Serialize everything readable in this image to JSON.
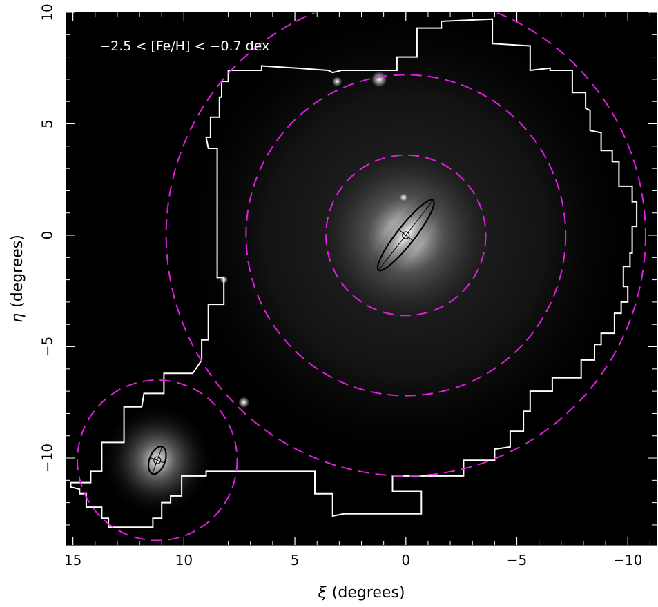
{
  "chart_data": {
    "type": "scatter",
    "title": "",
    "annotation": "−2.5 < [Fe/H] < −0.7 dex",
    "xlabel_symbol": "ξ",
    "xlabel_unit": "(degrees)",
    "ylabel_symbol": "η",
    "ylabel_unit": "(degrees)",
    "xlim": [
      15.3,
      -11.3
    ],
    "ylim": [
      -13.9,
      10.0
    ],
    "x_reversed": true,
    "grid": false,
    "background": "#000000",
    "x_ticks": [
      15,
      10,
      5,
      0,
      -5,
      -10
    ],
    "x_tick_labels": [
      "15",
      "10",
      "5",
      "0",
      "−5",
      "−10"
    ],
    "y_ticks": [
      10,
      5,
      0,
      -5,
      -10
    ],
    "y_tick_labels": [
      "10",
      "5",
      "0",
      "−5",
      "−10"
    ],
    "circles": [
      {
        "name": "M31 inner",
        "cx": 0,
        "cy": 0,
        "r": 3.6,
        "color": "#e020e0"
      },
      {
        "name": "M31 middle",
        "cx": 0,
        "cy": 0,
        "r": 7.2,
        "color": "#e020e0"
      },
      {
        "name": "M31 outer",
        "cx": 0,
        "cy": 0,
        "r": 10.8,
        "color": "#e020e0"
      },
      {
        "name": "M33",
        "cx": 11.2,
        "cy": -10.1,
        "r": 3.6,
        "color": "#e020e0"
      }
    ],
    "ellipses": [
      {
        "name": "M31 disk",
        "cx": 0,
        "cy": 0,
        "semi_major_deg": 2.0,
        "semi_minor_deg": 0.4,
        "pa_deg": 38,
        "color": "#000000"
      },
      {
        "name": "M33 disk",
        "cx": 11.2,
        "cy": -10.1,
        "semi_major_deg": 0.65,
        "semi_minor_deg": 0.35,
        "pa_deg": 20,
        "color": "#000000"
      }
    ],
    "footprint_color": "#ffffff",
    "footprint": [
      [
        8.0,
        7.4
      ],
      [
        6.5,
        7.4
      ],
      [
        6.5,
        7.6
      ],
      [
        4.9,
        7.5
      ],
      [
        3.5,
        7.4
      ],
      [
        3.3,
        7.3
      ],
      [
        2.9,
        7.4
      ],
      [
        0.4,
        7.4
      ],
      [
        0.4,
        8.0
      ],
      [
        -0.5,
        8.0
      ],
      [
        -0.5,
        9.3
      ],
      [
        -1.6,
        9.3
      ],
      [
        -1.6,
        9.6
      ],
      [
        -3.9,
        9.7
      ],
      [
        -3.9,
        8.6
      ],
      [
        -5.6,
        8.5
      ],
      [
        -5.6,
        7.4
      ],
      [
        -6.5,
        7.5
      ],
      [
        -6.5,
        7.4
      ],
      [
        -7.5,
        7.4
      ],
      [
        -7.5,
        6.4
      ],
      [
        -8.1,
        6.4
      ],
      [
        -8.1,
        5.7
      ],
      [
        -8.3,
        5.6
      ],
      [
        -8.3,
        4.7
      ],
      [
        -8.8,
        4.6
      ],
      [
        -8.8,
        3.8
      ],
      [
        -9.3,
        3.8
      ],
      [
        -9.3,
        3.3
      ],
      [
        -9.6,
        3.3
      ],
      [
        -9.6,
        2.2
      ],
      [
        -10.2,
        2.2
      ],
      [
        -10.2,
        1.5
      ],
      [
        -10.4,
        1.5
      ],
      [
        -10.4,
        0.4
      ],
      [
        -10.2,
        0.4
      ],
      [
        -10.2,
        -0.8
      ],
      [
        -10.1,
        -0.8
      ],
      [
        -10.1,
        -1.4
      ],
      [
        -9.8,
        -1.4
      ],
      [
        -9.8,
        -2.3
      ],
      [
        -10.0,
        -2.3
      ],
      [
        -10.0,
        -3.0
      ],
      [
        -9.7,
        -3.0
      ],
      [
        -9.7,
        -3.5
      ],
      [
        -9.4,
        -3.5
      ],
      [
        -9.4,
        -4.4
      ],
      [
        -8.8,
        -4.4
      ],
      [
        -8.8,
        -4.9
      ],
      [
        -8.5,
        -4.9
      ],
      [
        -8.5,
        -5.6
      ],
      [
        -7.9,
        -5.6
      ],
      [
        -7.9,
        -6.4
      ],
      [
        -6.6,
        -6.4
      ],
      [
        -6.6,
        -7.0
      ],
      [
        -5.6,
        -7.0
      ],
      [
        -5.6,
        -7.9
      ],
      [
        -5.3,
        -7.9
      ],
      [
        -5.3,
        -8.8
      ],
      [
        -4.7,
        -8.8
      ],
      [
        -4.7,
        -9.5
      ],
      [
        -4.0,
        -9.6
      ],
      [
        -4.0,
        -10.1
      ],
      [
        -2.6,
        -10.1
      ],
      [
        -2.6,
        -10.8
      ],
      [
        0.6,
        -10.8
      ],
      [
        0.6,
        -11.5
      ],
      [
        -0.7,
        -11.5
      ],
      [
        -0.7,
        -12.5
      ],
      [
        2.8,
        -12.5
      ],
      [
        3.3,
        -12.6
      ],
      [
        3.3,
        -11.6
      ],
      [
        4.1,
        -11.6
      ],
      [
        4.1,
        -10.6
      ],
      [
        9.0,
        -10.6
      ],
      [
        9.0,
        -10.8
      ],
      [
        10.1,
        -10.8
      ],
      [
        10.1,
        -11.7
      ],
      [
        10.6,
        -11.7
      ],
      [
        10.6,
        -12.0
      ],
      [
        11.0,
        -12.0
      ],
      [
        11.0,
        -12.7
      ],
      [
        11.4,
        -12.7
      ],
      [
        11.4,
        -13.1
      ],
      [
        13.4,
        -13.1
      ],
      [
        13.4,
        -12.7
      ],
      [
        13.7,
        -12.7
      ],
      [
        13.7,
        -12.2
      ],
      [
        14.4,
        -12.2
      ],
      [
        14.4,
        -11.6
      ],
      [
        14.7,
        -11.6
      ],
      [
        14.7,
        -11.4
      ],
      [
        15.1,
        -11.3
      ],
      [
        15.1,
        -11.1
      ],
      [
        14.2,
        -11.1
      ],
      [
        14.2,
        -10.6
      ],
      [
        13.7,
        -10.6
      ],
      [
        13.7,
        -9.3
      ],
      [
        12.7,
        -9.3
      ],
      [
        12.7,
        -7.7
      ],
      [
        11.9,
        -7.7
      ],
      [
        11.8,
        -7.1
      ],
      [
        10.9,
        -7.1
      ],
      [
        10.9,
        -6.2
      ],
      [
        9.6,
        -6.2
      ],
      [
        9.2,
        -5.6
      ],
      [
        9.2,
        -4.7
      ],
      [
        8.9,
        -4.7
      ],
      [
        8.9,
        -3.1
      ],
      [
        8.2,
        -3.1
      ],
      [
        8.2,
        -1.9
      ],
      [
        8.5,
        -1.9
      ],
      [
        8.5,
        0.6
      ],
      [
        8.5,
        2.8
      ],
      [
        8.5,
        3.9
      ],
      [
        8.9,
        3.9
      ],
      [
        9.0,
        4.4
      ],
      [
        8.8,
        4.4
      ],
      [
        8.8,
        5.3
      ],
      [
        8.4,
        5.3
      ],
      [
        8.4,
        6.2
      ],
      [
        8.3,
        6.2
      ],
      [
        8.3,
        6.9
      ],
      [
        8.0,
        6.9
      ]
    ],
    "bright_sources": [
      {
        "x": 1.2,
        "y": 7.0,
        "r": 0.35
      },
      {
        "x": 3.1,
        "y": 6.9,
        "r": 0.22
      },
      {
        "x": 7.3,
        "y": -7.5,
        "r": 0.25
      },
      {
        "x": 0.1,
        "y": 1.7,
        "r": 0.18
      },
      {
        "x": 8.2,
        "y": -2.0,
        "r": 0.18
      }
    ]
  }
}
